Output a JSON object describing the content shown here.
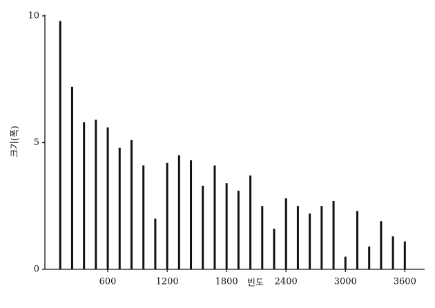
{
  "chart_data": {
    "type": "bar",
    "x_label": "빈도",
    "y_label": "크기(폭)",
    "x": [
      120,
      240,
      360,
      480,
      600,
      720,
      840,
      960,
      1080,
      1200,
      1320,
      1440,
      1560,
      1680,
      1800,
      1920,
      2040,
      2160,
      2280,
      2400,
      2520,
      2640,
      2760,
      2880,
      3000,
      3120,
      3240,
      3360,
      3480,
      3600
    ],
    "values": [
      9.8,
      7.2,
      5.8,
      5.9,
      5.6,
      4.8,
      5.1,
      4.1,
      2.0,
      4.2,
      4.5,
      4.3,
      3.3,
      4.1,
      3.4,
      3.1,
      3.7,
      2.5,
      1.6,
      2.8,
      2.5,
      2.2,
      2.5,
      2.7,
      0.5,
      2.3,
      0.9,
      1.9,
      1.3,
      1.1
    ],
    "color": "#111111",
    "xlim": [
      -35,
      3800
    ],
    "xticks": [
      600,
      1200,
      1800,
      2400,
      3000,
      3600
    ],
    "ylim": [
      0,
      10
    ],
    "yticks": [
      0,
      5,
      10
    ],
    "grid": false
  }
}
